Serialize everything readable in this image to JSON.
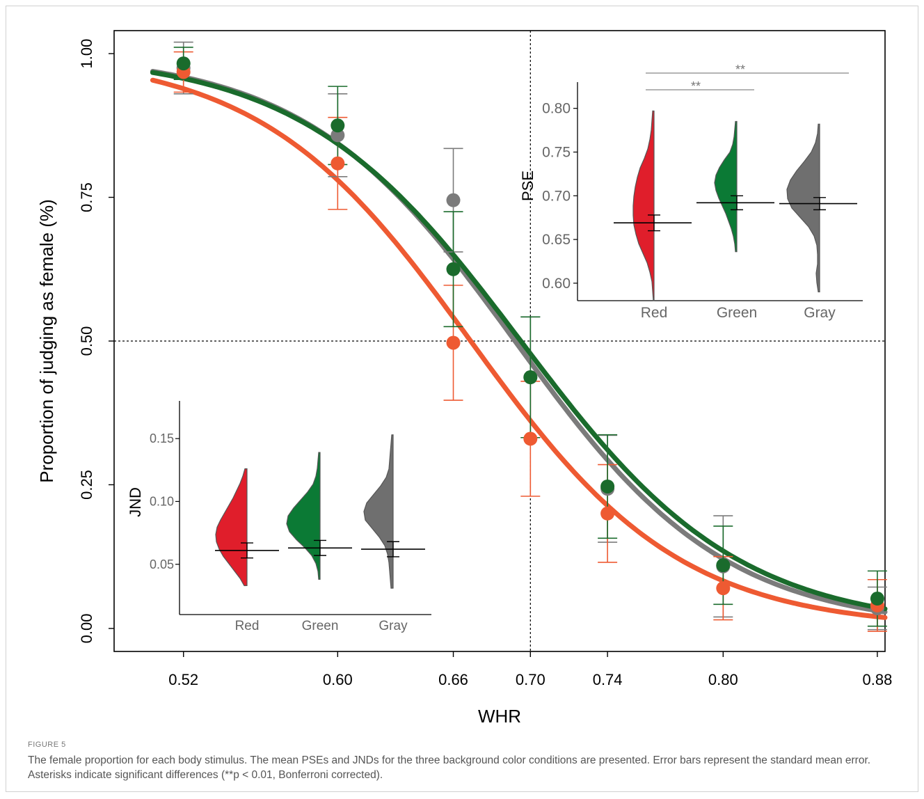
{
  "figure": {
    "label": "FIGURE 5",
    "caption": "The female proportion for each body stimulus. The mean PSEs and JNDs for the three background color conditions are presented. Error bars represent the standard mean error. Asterisks indicate significant differences (**p < 0.01, Bonferroni corrected)."
  },
  "colors": {
    "red": "#ee5a32",
    "green": "#1a6b2c",
    "gray": "#7b7b7b",
    "violin_red": "#e01e2b",
    "violin_green": "#0b7a35",
    "violin_gray": "#6f6f6f"
  },
  "chart_data": [
    {
      "type": "line",
      "xlabel": "WHR",
      "ylabel": "Proportion of judging as female (%)",
      "x_ticks": [
        "0.52",
        "0.60",
        "0.66",
        "0.70",
        "0.74",
        "0.80",
        "0.88"
      ],
      "y_ticks": [
        "0.00",
        "0.25",
        "0.50",
        "0.75",
        "1.00"
      ],
      "xlim": [
        0.484,
        0.884
      ],
      "ylim": [
        -0.04,
        1.04
      ],
      "reference_lines": {
        "x": 0.7,
        "y": 0.5
      },
      "grid": false,
      "x": [
        0.52,
        0.6,
        0.66,
        0.7,
        0.74,
        0.8,
        0.88
      ],
      "series": [
        {
          "color": "gray",
          "values": [
            0.975,
            0.858,
            0.745,
            0.437,
            0.243,
            0.108,
            0.035
          ],
          "err": [
            0.045,
            0.072,
            0.09,
            0.105,
            0.093,
            0.088,
            0.037
          ],
          "fit": {
            "pse": 0.692,
            "slope": 0.0545
          }
        },
        {
          "color": "red",
          "values": [
            0.968,
            0.809,
            0.497,
            0.33,
            0.2,
            0.07,
            0.04
          ],
          "err": [
            0.035,
            0.08,
            0.1,
            0.1,
            0.085,
            0.055,
            0.045
          ],
          "fit": {
            "pse": 0.669,
            "slope": 0.0545
          }
        },
        {
          "color": "green",
          "values": [
            0.983,
            0.875,
            0.625,
            0.437,
            0.247,
            0.11,
            0.052
          ],
          "err": [
            0.028,
            0.068,
            0.1,
            0.105,
            0.09,
            0.068,
            0.048
          ],
          "fit": {
            "pse": 0.695,
            "slope": 0.0565
          }
        }
      ]
    },
    {
      "type": "violin",
      "ylabel": "PSE",
      "categories": [
        "Red",
        "Green",
        "Gray"
      ],
      "y_ticks": [
        "0.60",
        "0.65",
        "0.70",
        "0.75",
        "0.80"
      ],
      "ylim": [
        0.58,
        0.83
      ],
      "means": [
        0.669,
        0.692,
        0.691
      ],
      "err": [
        0.009,
        0.008,
        0.007
      ],
      "significance": [
        {
          "pair": [
            "Red",
            "Green"
          ],
          "label": "**"
        },
        {
          "pair": [
            "Red",
            "Gray"
          ],
          "label": "**"
        }
      ]
    },
    {
      "type": "violin",
      "ylabel": "JND",
      "categories": [
        "Red",
        "Green",
        "Gray"
      ],
      "y_ticks": [
        "0.05",
        "0.10",
        "0.15"
      ],
      "ylim": [
        0.01,
        0.18
      ],
      "means": [
        0.061,
        0.063,
        0.062
      ],
      "err": [
        0.006,
        0.006,
        0.006
      ]
    }
  ]
}
